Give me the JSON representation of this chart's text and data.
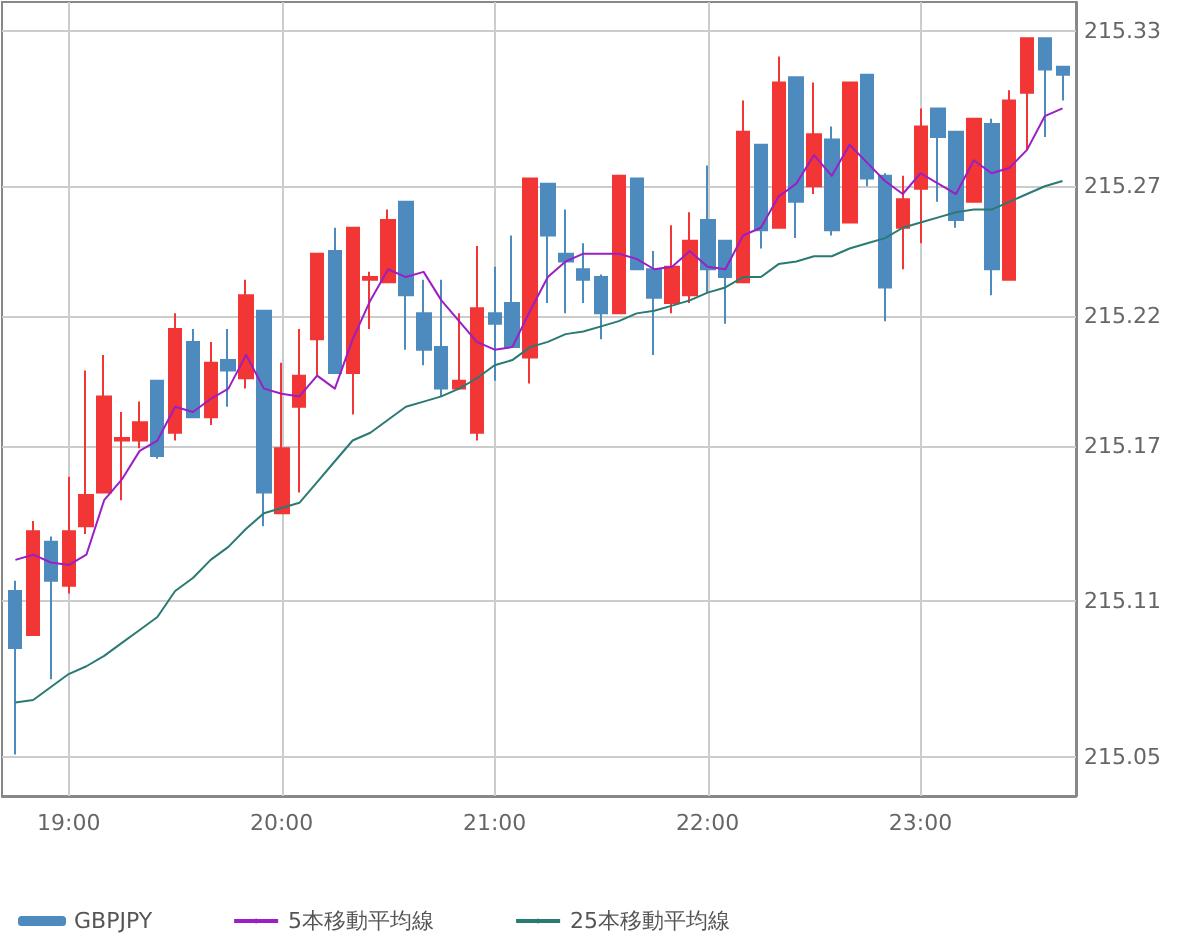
{
  "chart_data": {
    "type": "candlestick",
    "x": [
      18.75,
      18.8333,
      18.9167,
      19,
      19.0833,
      19.1667,
      19.25,
      19.3333,
      19.4167,
      19.5,
      19.5833,
      19.6667,
      19.75,
      19.8333,
      19.9167,
      20,
      20.0833,
      20.1667,
      20.25,
      20.3333,
      20.4167,
      20.5,
      20.5833,
      20.6667,
      20.75,
      20.8333,
      20.9167,
      21,
      21.0833,
      21.1667,
      21.25,
      21.3333,
      21.4167,
      21.5,
      21.5833,
      21.6667,
      21.75,
      21.8333,
      21.9167,
      22,
      22.0833,
      22.1667,
      22.25,
      22.3333,
      22.4167,
      22.5,
      22.5833,
      22.6667,
      22.75,
      22.8333,
      22.9167,
      23,
      23.0833,
      23.1667,
      23.25,
      23.3333,
      23.4167,
      23.5,
      23.5833,
      23.6667
    ],
    "series": [
      {
        "type": "candlestick",
        "name": "GBPJPY",
        "ohlc": [
          [
            215.114,
            215.118,
            215.051,
            215.092
          ],
          [
            215.097,
            215.141,
            215.097,
            215.137
          ],
          [
            215.133,
            215.135,
            215.08,
            215.118
          ],
          [
            215.116,
            215.158,
            215.113,
            215.137
          ],
          [
            215.139,
            215.199,
            215.136,
            215.151
          ],
          [
            215.152,
            215.205,
            215.152,
            215.189
          ],
          [
            215.172,
            215.183,
            215.149,
            215.173
          ],
          [
            215.172,
            215.187,
            215.169,
            215.179
          ],
          [
            215.195,
            215.195,
            215.165,
            215.166
          ],
          [
            215.175,
            215.221,
            215.172,
            215.215
          ],
          [
            215.21,
            215.215,
            215.181,
            215.181
          ],
          [
            215.181,
            215.21,
            215.178,
            215.202
          ],
          [
            215.203,
            215.215,
            215.185,
            215.199
          ],
          [
            215.196,
            215.234,
            215.192,
            215.228
          ],
          [
            215.222,
            215.222,
            215.139,
            215.152
          ],
          [
            215.144,
            215.202,
            215.144,
            215.169
          ],
          [
            215.185,
            215.215,
            215.152,
            215.197
          ],
          [
            215.211,
            215.244,
            215.197,
            215.244
          ],
          [
            215.245,
            215.254,
            215.198,
            215.198
          ],
          [
            215.198,
            215.254,
            215.182,
            215.254
          ],
          [
            215.234,
            215.237,
            215.215,
            215.235
          ],
          [
            215.233,
            215.261,
            215.233,
            215.257
          ],
          [
            215.264,
            215.264,
            215.207,
            215.228
          ],
          [
            215.221,
            215.234,
            215.201,
            215.207
          ],
          [
            215.208,
            215.234,
            215.189,
            215.192
          ],
          [
            215.192,
            215.221,
            215.192,
            215.195
          ],
          [
            215.175,
            215.247,
            215.172,
            215.223
          ],
          [
            215.221,
            215.239,
            215.195,
            215.217
          ],
          [
            215.225,
            215.251,
            215.208,
            215.208
          ],
          [
            215.204,
            215.273,
            215.194,
            215.273
          ],
          [
            215.271,
            215.271,
            215.225,
            215.251
          ],
          [
            215.244,
            215.261,
            215.221,
            215.241
          ],
          [
            215.238,
            215.248,
            215.225,
            215.234
          ],
          [
            215.235,
            215.236,
            215.211,
            215.221
          ],
          [
            215.221,
            215.274,
            215.221,
            215.274
          ],
          [
            215.273,
            215.273,
            215.238,
            215.238
          ],
          [
            215.238,
            215.245,
            215.205,
            215.227
          ],
          [
            215.225,
            215.255,
            215.221,
            215.239
          ],
          [
            215.228,
            215.26,
            215.225,
            215.249
          ],
          [
            215.257,
            215.278,
            215.229,
            215.238
          ],
          [
            215.249,
            215.249,
            215.217,
            215.235
          ],
          [
            215.233,
            215.303,
            215.233,
            215.291
          ],
          [
            215.286,
            215.286,
            215.246,
            215.253
          ],
          [
            215.254,
            215.32,
            215.254,
            215.31
          ],
          [
            215.312,
            215.312,
            215.25,
            215.264
          ],
          [
            215.27,
            215.31,
            215.267,
            215.29
          ],
          [
            215.288,
            215.293,
            215.251,
            215.253
          ],
          [
            215.256,
            215.31,
            215.256,
            215.31
          ],
          [
            215.313,
            215.313,
            215.27,
            215.273
          ],
          [
            215.274,
            215.275,
            215.218,
            215.231
          ],
          [
            215.254,
            215.274,
            215.238,
            215.265
          ],
          [
            215.269,
            215.3,
            215.248,
            215.293
          ],
          [
            215.3,
            215.3,
            215.264,
            215.289
          ],
          [
            215.291,
            215.291,
            215.254,
            215.257
          ],
          [
            215.264,
            215.296,
            215.264,
            215.296
          ],
          [
            215.294,
            215.296,
            215.228,
            215.238
          ],
          [
            215.234,
            215.307,
            215.234,
            215.303
          ],
          [
            215.306,
            215.327,
            215.284,
            215.327
          ],
          [
            215.327,
            215.327,
            215.289,
            215.315
          ],
          [
            215.316,
            215.316,
            215.303,
            215.313
          ]
        ],
        "colors": [
          "#4d8bbf",
          "#f23535",
          "#4d8bbf",
          "#f23535",
          "#f23535",
          "#f23535",
          "#f23535",
          "#f23535",
          "#4d8bbf",
          "#f23535",
          "#4d8bbf",
          "#f23535",
          "#4d8bbf",
          "#f23535",
          "#4d8bbf",
          "#f23535",
          "#f23535",
          "#f23535",
          "#4d8bbf",
          "#f23535",
          "#f23535",
          "#f23535",
          "#4d8bbf",
          "#4d8bbf",
          "#4d8bbf",
          "#f23535",
          "#f23535",
          "#4d8bbf",
          "#4d8bbf",
          "#f23535",
          "#4d8bbf",
          "#4d8bbf",
          "#4d8bbf",
          "#4d8bbf",
          "#f23535",
          "#4d8bbf",
          "#4d8bbf",
          "#f23535",
          "#f23535",
          "#4d8bbf",
          "#4d8bbf",
          "#f23535",
          "#4d8bbf",
          "#f23535",
          "#4d8bbf",
          "#f23535",
          "#4d8bbf",
          "#f23535",
          "#4d8bbf",
          "#4d8bbf",
          "#f23535",
          "#f23535",
          "#4d8bbf",
          "#4d8bbf",
          "#f23535",
          "#4d8bbf",
          "#f23535",
          "#f23535",
          "#4d8bbf",
          "#4d8bbf"
        ]
      },
      {
        "type": "line",
        "name": "5本移動平均線",
        "color": "#9b1fc4",
        "values": [
          215.126,
          215.128,
          215.125,
          215.124,
          215.128,
          215.149,
          215.157,
          215.168,
          215.172,
          215.185,
          215.183,
          215.188,
          215.192,
          215.205,
          215.192,
          215.19,
          215.189,
          215.197,
          215.192,
          215.211,
          215.226,
          215.238,
          215.235,
          215.237,
          215.226,
          215.218,
          215.21,
          215.207,
          215.208,
          215.222,
          215.235,
          215.241,
          215.244,
          215.244,
          215.244,
          215.242,
          215.238,
          215.239,
          215.245,
          215.239,
          215.238,
          215.251,
          215.254,
          215.266,
          215.271,
          215.282,
          215.274,
          215.286,
          215.279,
          215.272,
          215.267,
          215.275,
          215.271,
          215.267,
          215.28,
          215.275,
          215.277,
          215.284,
          215.297,
          215.3
        ]
      },
      {
        "type": "line",
        "name": "25本移動平均線",
        "color": "#2a7a74",
        "values": [
          215.071,
          215.072,
          215.077,
          215.082,
          215.085,
          215.089,
          215.094,
          215.099,
          215.104,
          215.114,
          215.119,
          215.126,
          215.131,
          215.138,
          215.144,
          215.146,
          215.148,
          215.156,
          215.164,
          215.172,
          215.175,
          215.18,
          215.185,
          215.187,
          215.189,
          215.192,
          215.196,
          215.201,
          215.203,
          215.208,
          215.21,
          215.213,
          215.214,
          215.216,
          215.218,
          215.221,
          215.222,
          215.224,
          215.226,
          215.229,
          215.231,
          215.235,
          215.235,
          215.24,
          215.241,
          215.243,
          215.243,
          215.246,
          215.248,
          215.25,
          215.254,
          215.256,
          215.258,
          215.26,
          215.261,
          215.261,
          215.264,
          215.267,
          215.27,
          215.272
        ]
      }
    ],
    "xlim": [
      18.687,
      23.73
    ],
    "xticks": [
      {
        "value": 19,
        "label": "19:00"
      },
      {
        "value": 20,
        "label": "20:00"
      },
      {
        "value": 21,
        "label": "21:00"
      },
      {
        "value": 22,
        "label": "22:00"
      },
      {
        "value": 23,
        "label": "23:00"
      }
    ],
    "ylim": [
      215.035,
      215.341
    ],
    "yticks": [
      215.05,
      215.11,
      215.17,
      215.22,
      215.27,
      215.33
    ],
    "grid": true,
    "legend": "bottom",
    "marker": "none"
  }
}
